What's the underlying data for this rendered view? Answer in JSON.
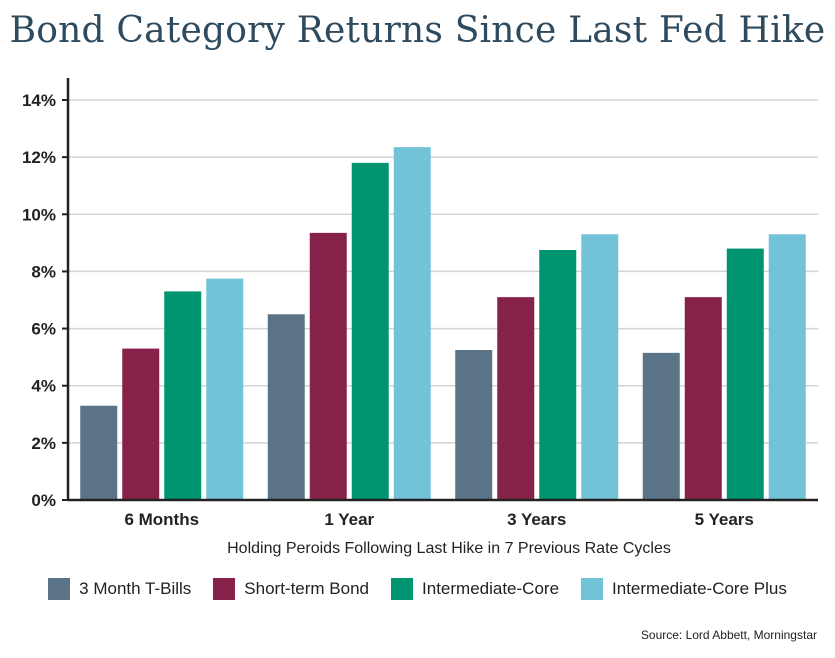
{
  "chart_data": {
    "type": "bar",
    "title": "Bond Category Returns Since Last Fed Hike",
    "xlabel": "Holding Peroids Following Last Hike in 7 Previous Rate Cycles",
    "ylabel": "",
    "categories": [
      "6 Months",
      "1 Year",
      "3 Years",
      "5 Years"
    ],
    "ylim": [
      0,
      14
    ],
    "yticks": [
      "0%",
      "2%",
      "4%",
      "6%",
      "8%",
      "10%",
      "12%",
      "14%"
    ],
    "grid": true,
    "legend_position": "bottom",
    "series": [
      {
        "name": "3 Month T-Bills",
        "color": "#5a7386",
        "values": [
          3.3,
          6.5,
          5.25,
          5.15
        ]
      },
      {
        "name": "Short-term Bond",
        "color": "#86224a",
        "values": [
          5.3,
          9.35,
          7.1,
          7.1
        ]
      },
      {
        "name": "Intermediate-Core",
        "color": "#009471",
        "values": [
          7.3,
          11.8,
          8.75,
          8.8
        ]
      },
      {
        "name": "Intermediate-Core Plus",
        "color": "#72c3d8",
        "values": [
          7.75,
          12.35,
          9.3,
          9.3
        ]
      }
    ],
    "source": "Source: Lord Abbett, Morningstar"
  }
}
